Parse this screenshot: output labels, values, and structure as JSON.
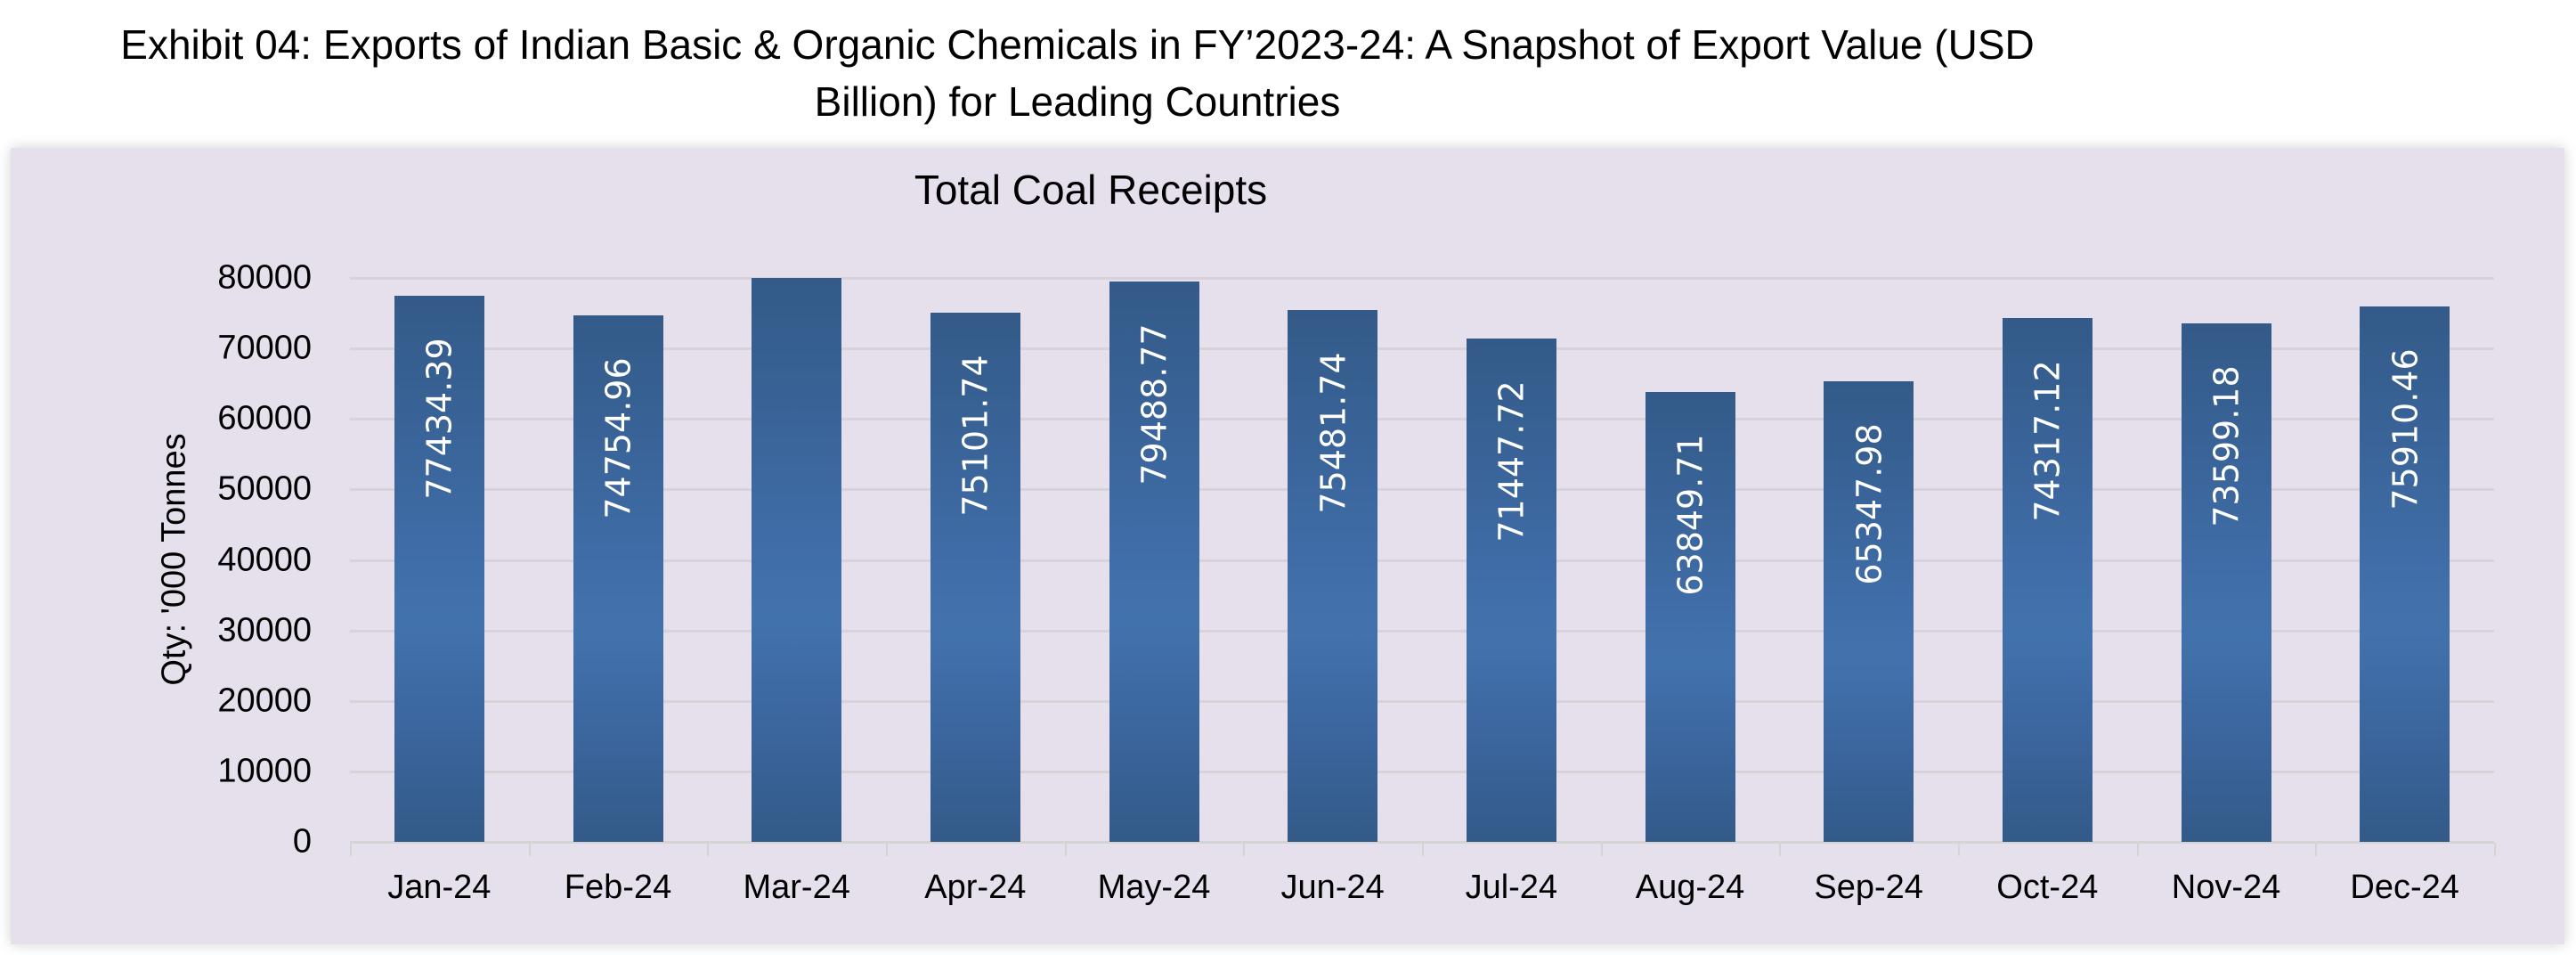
{
  "exhibit_title_line1": "Exhibit 04: Exports of Indian Basic & Organic Chemicals in FY’2023-24: A Snapshot of Export Value (USD",
  "exhibit_title_line2": "Billion) for Leading Countries",
  "colors": {
    "panel_background": "#e5e0ec",
    "bar_dark": "#335a88",
    "bar_light": "#4272ad",
    "gridline": "#d6d4d8",
    "label_text": "#ffffff"
  },
  "chart_data": {
    "type": "bar",
    "title": "Total Coal Receipts",
    "xlabel": "",
    "ylabel": "Qty: '000 Tonnes",
    "ylim": [
      0,
      80000
    ],
    "yticks": [
      "0",
      "10000",
      "20000",
      "30000",
      "40000",
      "50000",
      "60000",
      "70000",
      "80000"
    ],
    "grid": true,
    "legend": "none",
    "categories": [
      "Jan-24",
      "Feb-24",
      "Mar-24",
      "Apr-24",
      "May-24",
      "Jun-24",
      "Jul-24",
      "Aug-24",
      "Sep-24",
      "Oct-24",
      "Nov-24",
      "Dec-24"
    ],
    "values": [
      77434.39,
      74754.96,
      80000,
      75101.74,
      79488.77,
      75481.74,
      71447.72,
      63849.71,
      65347.98,
      74317.12,
      73599.18,
      75910.46
    ],
    "data_labels": [
      "77434.39",
      "74754.96",
      "",
      "75101.74",
      "79488.77",
      "75481.74",
      "71447.72",
      "63849.71",
      "65347.98",
      "74317.12",
      "73599.18",
      "75910.46"
    ]
  }
}
